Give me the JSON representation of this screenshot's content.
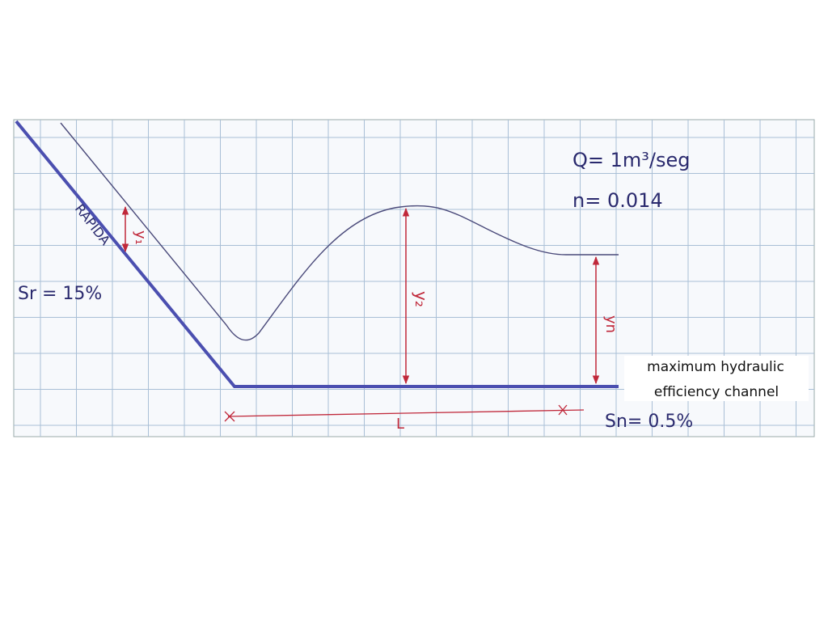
{
  "flow": {
    "discharge": "Q= 1m³/seg",
    "roughness": "n= 0.014"
  },
  "labels": {
    "chute": "RAPIDA",
    "chute_slope": "Sr = 15%",
    "channel_slope": "Sn= 0.5%",
    "length": "L",
    "depth_1": "y₁",
    "depth_2": "y₂",
    "depth_n": "yn"
  },
  "caption": {
    "lines": [
      "maximum hydraulic",
      "efficiency channel"
    ]
  }
}
